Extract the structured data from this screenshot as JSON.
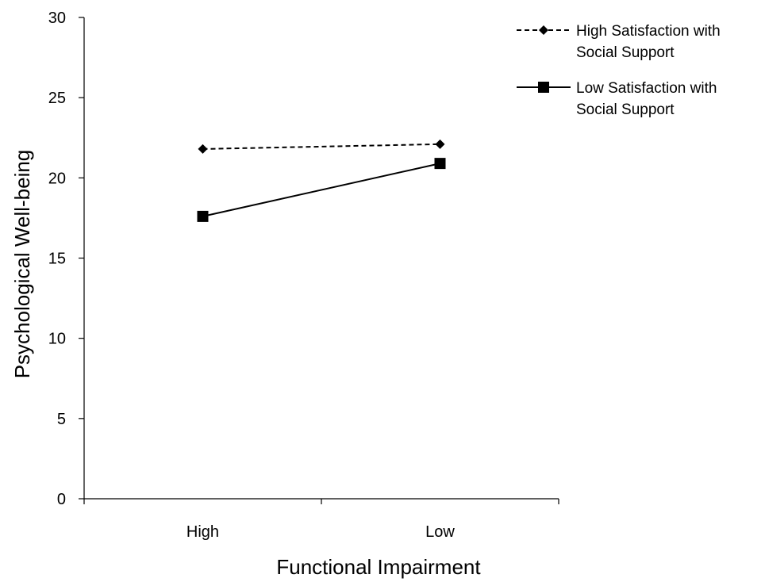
{
  "chart_data": {
    "type": "line",
    "title": "",
    "xlabel": "Functional Impairment",
    "ylabel": "Psychological Well-being",
    "categories": [
      "High",
      "Low"
    ],
    "ylim": [
      0,
      30
    ],
    "yticks": [
      "0",
      "5",
      "10",
      "15",
      "20",
      "25",
      "30"
    ],
    "grid": false,
    "legend_position": "top-right",
    "series": [
      {
        "name_lines": [
          "High Satisfaction with",
          "Social Support"
        ],
        "values": [
          21.8,
          22.1
        ],
        "line_style": "dashed",
        "marker": "diamond",
        "color": "#000000"
      },
      {
        "name_lines": [
          "Low Satisfaction with",
          "Social Support"
        ],
        "values": [
          17.6,
          20.9
        ],
        "line_style": "solid",
        "marker": "square",
        "color": "#000000"
      }
    ]
  }
}
